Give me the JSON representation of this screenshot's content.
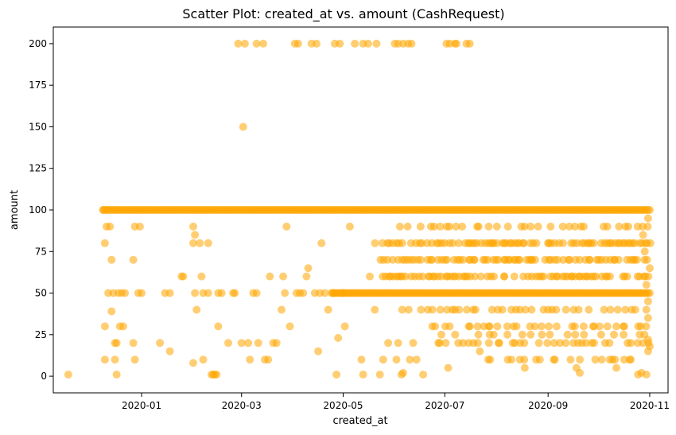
{
  "chart_data": {
    "type": "scatter",
    "title": "Scatter Plot: created_at vs. amount (CashRequest)",
    "xlabel": "created_at",
    "ylabel": "amount",
    "x_axis_type": "date",
    "xlim": [
      "2019-11-09",
      "2020-11-12"
    ],
    "ylim": [
      -10,
      210
    ],
    "x_ticks": [
      "2020-01",
      "2020-03",
      "2020-05",
      "2020-07",
      "2020-09",
      "2020-11"
    ],
    "y_ticks": [
      0,
      25,
      50,
      75,
      100,
      125,
      150,
      175,
      200
    ],
    "grid": false,
    "legend": "none",
    "marker_color": "#FFA500",
    "marker_alpha": 0.55,
    "clusters": [
      {
        "amount": 100,
        "from": "2019-12-09",
        "to": "2020-11-01",
        "density": "continuous"
      },
      {
        "amount": 50,
        "from": "2020-04-24",
        "to": "2020-11-01",
        "density": "continuous"
      },
      {
        "amount": 80,
        "from": "2020-05-20",
        "to": "2020-11-01",
        "density": "dense"
      },
      {
        "amount": 70,
        "from": "2020-05-22",
        "to": "2020-11-01",
        "density": "dense"
      },
      {
        "amount": 60,
        "from": "2020-05-25",
        "to": "2020-11-01",
        "density": "dense"
      },
      {
        "amount": 90,
        "from": "2020-06-01",
        "to": "2020-11-01",
        "density": "medium"
      },
      {
        "amount": 40,
        "from": "2020-06-05",
        "to": "2020-11-01",
        "density": "medium"
      },
      {
        "amount": 30,
        "from": "2020-06-20",
        "to": "2020-11-01",
        "density": "medium"
      },
      {
        "amount": 20,
        "from": "2020-06-20",
        "to": "2020-11-01",
        "density": "medium"
      },
      {
        "amount": 25,
        "from": "2020-07-01",
        "to": "2020-11-01",
        "density": "sparse"
      },
      {
        "amount": 10,
        "from": "2020-07-20",
        "to": "2020-11-01",
        "density": "sparse"
      }
    ],
    "points": [
      [
        "2019-11-18",
        1
      ],
      [
        "2019-12-09",
        100
      ],
      [
        "2019-12-10",
        80
      ],
      [
        "2019-12-10",
        30
      ],
      [
        "2019-12-10",
        10
      ],
      [
        "2019-12-11",
        90
      ],
      [
        "2019-12-12",
        50
      ],
      [
        "2019-12-13",
        90
      ],
      [
        "2019-12-14",
        70
      ],
      [
        "2019-12-14",
        39
      ],
      [
        "2019-12-15",
        50
      ],
      [
        "2019-12-16",
        20
      ],
      [
        "2019-12-16",
        10
      ],
      [
        "2019-12-17",
        1
      ],
      [
        "2019-12-17",
        20
      ],
      [
        "2019-12-18",
        50
      ],
      [
        "2019-12-19",
        30
      ],
      [
        "2019-12-20",
        50
      ],
      [
        "2019-12-21",
        30
      ],
      [
        "2019-12-22",
        50
      ],
      [
        "2019-12-27",
        20
      ],
      [
        "2019-12-27",
        70
      ],
      [
        "2019-12-28",
        10
      ],
      [
        "2019-12-28",
        90
      ],
      [
        "2019-12-30",
        50
      ],
      [
        "2019-12-31",
        90
      ],
      [
        "2020-01-01",
        50
      ],
      [
        "2020-01-12",
        20
      ],
      [
        "2020-01-15",
        50
      ],
      [
        "2020-01-18",
        15
      ],
      [
        "2020-01-18",
        50
      ],
      [
        "2020-01-25",
        60
      ],
      [
        "2020-01-26",
        60
      ],
      [
        "2020-02-01",
        8
      ],
      [
        "2020-02-01",
        80
      ],
      [
        "2020-02-01",
        90
      ],
      [
        "2020-02-02",
        85
      ],
      [
        "2020-02-02",
        50
      ],
      [
        "2020-02-03",
        40
      ],
      [
        "2020-02-05",
        80
      ],
      [
        "2020-02-06",
        60
      ],
      [
        "2020-02-07",
        50
      ],
      [
        "2020-02-07",
        10
      ],
      [
        "2020-02-10",
        80
      ],
      [
        "2020-02-10",
        50
      ],
      [
        "2020-02-12",
        1
      ],
      [
        "2020-02-13",
        1
      ],
      [
        "2020-02-14",
        1
      ],
      [
        "2020-02-15",
        1
      ],
      [
        "2020-02-16",
        30
      ],
      [
        "2020-02-16",
        50
      ],
      [
        "2020-02-18",
        50
      ],
      [
        "2020-02-22",
        20
      ],
      [
        "2020-02-25",
        50
      ],
      [
        "2020-02-26",
        50
      ],
      [
        "2020-03-02",
        150
      ],
      [
        "2020-03-01",
        20
      ],
      [
        "2020-03-05",
        20
      ],
      [
        "2020-03-06",
        10
      ],
      [
        "2020-03-08",
        50
      ],
      [
        "2020-03-10",
        50
      ],
      [
        "2020-03-11",
        20
      ],
      [
        "2020-03-15",
        10
      ],
      [
        "2020-03-17",
        10
      ],
      [
        "2020-03-18",
        60
      ],
      [
        "2020-03-20",
        20
      ],
      [
        "2020-03-22",
        20
      ],
      [
        "2020-03-25",
        40
      ],
      [
        "2020-03-26",
        60
      ],
      [
        "2020-03-27",
        50
      ],
      [
        "2020-03-28",
        90
      ],
      [
        "2020-03-30",
        30
      ],
      [
        "2020-04-03",
        50
      ],
      [
        "2020-04-05",
        50
      ],
      [
        "2020-04-07",
        50
      ],
      [
        "2020-04-09",
        60
      ],
      [
        "2020-04-10",
        65
      ],
      [
        "2020-04-14",
        50
      ],
      [
        "2020-04-16",
        15
      ],
      [
        "2020-04-17",
        50
      ],
      [
        "2020-04-18",
        80
      ],
      [
        "2020-04-20",
        50
      ],
      [
        "2020-04-22",
        40
      ],
      [
        "2020-04-25",
        50
      ],
      [
        "2020-04-27",
        1
      ],
      [
        "2020-04-28",
        23
      ],
      [
        "2020-05-01",
        50
      ],
      [
        "2020-05-02",
        30
      ],
      [
        "2020-05-05",
        90
      ],
      [
        "2020-05-12",
        10
      ],
      [
        "2020-05-13",
        1
      ],
      [
        "2020-05-17",
        60
      ],
      [
        "2020-05-20",
        40
      ],
      [
        "2020-05-23",
        1
      ],
      [
        "2020-05-25",
        10
      ],
      [
        "2020-05-28",
        20
      ],
      [
        "2020-06-02",
        10
      ],
      [
        "2020-06-03",
        20
      ],
      [
        "2020-06-05",
        1
      ],
      [
        "2020-06-06",
        2
      ],
      [
        "2020-06-10",
        10
      ],
      [
        "2020-06-12",
        20
      ],
      [
        "2020-06-14",
        10
      ],
      [
        "2020-06-18",
        1
      ],
      [
        "2020-07-03",
        5
      ],
      [
        "2020-07-22",
        15
      ],
      [
        "2020-08-10",
        10
      ],
      [
        "2020-08-18",
        5
      ],
      [
        "2020-09-05",
        10
      ],
      [
        "2020-09-18",
        5
      ],
      [
        "2020-09-20",
        2
      ],
      [
        "2020-10-08",
        10
      ],
      [
        "2020-10-12",
        5
      ],
      [
        "2020-10-20",
        10
      ],
      [
        "2020-10-25",
        1
      ],
      [
        "2020-10-27",
        2
      ],
      [
        "2020-10-30",
        1
      ],
      [
        "2020-10-31",
        15
      ],
      [
        "2020-10-31",
        22
      ],
      [
        "2020-11-01",
        18
      ],
      [
        "2020-10-30",
        55
      ],
      [
        "2020-10-31",
        45
      ],
      [
        "2020-10-29",
        75
      ],
      [
        "2020-10-31",
        35
      ],
      [
        "2020-11-01",
        65
      ],
      [
        "2020-10-28",
        85
      ],
      [
        "2020-10-31",
        95
      ],
      [
        "2020-02-28",
        200
      ],
      [
        "2020-03-03",
        200
      ],
      [
        "2020-03-10",
        200
      ],
      [
        "2020-03-14",
        200
      ],
      [
        "2020-04-02",
        200
      ],
      [
        "2020-04-04",
        200
      ],
      [
        "2020-04-12",
        200
      ],
      [
        "2020-04-15",
        200
      ],
      [
        "2020-04-26",
        200
      ],
      [
        "2020-04-29",
        200
      ],
      [
        "2020-05-08",
        200
      ],
      [
        "2020-05-13",
        200
      ],
      [
        "2020-05-16",
        200
      ],
      [
        "2020-05-21",
        200
      ],
      [
        "2020-06-01",
        200
      ],
      [
        "2020-06-03",
        200
      ],
      [
        "2020-06-06",
        200
      ],
      [
        "2020-06-09",
        200
      ],
      [
        "2020-06-11",
        200
      ],
      [
        "2020-07-02",
        200
      ],
      [
        "2020-07-04",
        200
      ],
      [
        "2020-07-07",
        200
      ],
      [
        "2020-07-08",
        200
      ],
      [
        "2020-07-14",
        200
      ],
      [
        "2020-07-16",
        200
      ]
    ]
  }
}
